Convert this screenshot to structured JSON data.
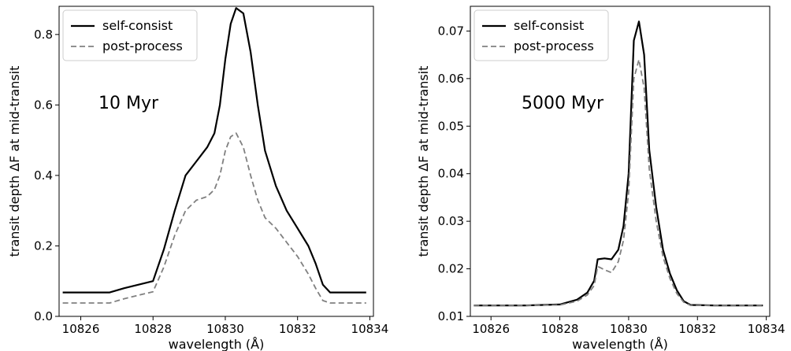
{
  "chart_data": [
    {
      "type": "line",
      "annotation": "10 Myr",
      "xlabel": "wavelength (Å)",
      "ylabel": "transit depth ΔF at mid-transit",
      "xlim": [
        10825.4,
        10834.1
      ],
      "ylim": [
        0.0,
        0.88
      ],
      "xticks": [
        10826,
        10828,
        10830,
        10832,
        10834
      ],
      "xtick_labels": [
        "10826",
        "10828",
        "10830",
        "10832",
        "10834"
      ],
      "yticks": [
        0.0,
        0.2,
        0.4,
        0.6,
        0.8
      ],
      "ytick_labels": [
        "0.0",
        "0.2",
        "0.4",
        "0.6",
        "0.8"
      ],
      "legend_position": "top-left",
      "series": [
        {
          "name": "self-consist",
          "style": "solid",
          "color": "#000000",
          "x": [
            10825.5,
            10826.0,
            10826.8,
            10827.2,
            10827.6,
            10828.0,
            10828.3,
            10828.6,
            10828.9,
            10829.2,
            10829.5,
            10829.7,
            10829.85,
            10830.0,
            10830.15,
            10830.3,
            10830.5,
            10830.7,
            10830.9,
            10831.1,
            10831.4,
            10831.7,
            10832.0,
            10832.3,
            10832.5,
            10832.7,
            10832.9,
            10833.5,
            10833.9
          ],
          "y": [
            0.068,
            0.068,
            0.068,
            0.08,
            0.09,
            0.1,
            0.19,
            0.3,
            0.4,
            0.44,
            0.48,
            0.52,
            0.6,
            0.73,
            0.83,
            0.875,
            0.86,
            0.75,
            0.6,
            0.47,
            0.37,
            0.3,
            0.25,
            0.2,
            0.15,
            0.09,
            0.068,
            0.068,
            0.068
          ]
        },
        {
          "name": "post-process",
          "style": "dashed",
          "color": "#808080",
          "x": [
            10825.5,
            10826.0,
            10826.8,
            10827.2,
            10827.6,
            10828.0,
            10828.3,
            10828.6,
            10828.9,
            10829.2,
            10829.5,
            10829.7,
            10829.85,
            10830.0,
            10830.15,
            10830.3,
            10830.5,
            10830.7,
            10830.9,
            10831.1,
            10831.4,
            10831.7,
            10832.0,
            10832.3,
            10832.5,
            10832.7,
            10832.9,
            10833.5,
            10833.9
          ],
          "y": [
            0.038,
            0.038,
            0.038,
            0.05,
            0.06,
            0.07,
            0.14,
            0.23,
            0.3,
            0.33,
            0.34,
            0.36,
            0.4,
            0.47,
            0.51,
            0.52,
            0.48,
            0.4,
            0.33,
            0.28,
            0.25,
            0.21,
            0.17,
            0.12,
            0.08,
            0.045,
            0.038,
            0.038,
            0.038
          ]
        }
      ]
    },
    {
      "type": "line",
      "annotation": "5000 Myr",
      "xlabel": "wavelength (Å)",
      "ylabel": "transit depth ΔF at mid-transit",
      "xlim": [
        10825.4,
        10834.1
      ],
      "ylim": [
        0.01,
        0.0752
      ],
      "xticks": [
        10826,
        10828,
        10830,
        10832,
        10834
      ],
      "xtick_labels": [
        "10826",
        "10828",
        "10830",
        "10832",
        "10834"
      ],
      "yticks": [
        0.01,
        0.02,
        0.03,
        0.04,
        0.05,
        0.06,
        0.07
      ],
      "ytick_labels": [
        "0.01",
        "0.02",
        "0.03",
        "0.04",
        "0.05",
        "0.06",
        "0.07"
      ],
      "legend_position": "top-left",
      "series": [
        {
          "name": "self-consist",
          "style": "solid",
          "color": "#000000",
          "x": [
            10825.5,
            10827.0,
            10828.0,
            10828.5,
            10828.8,
            10829.0,
            10829.1,
            10829.3,
            10829.5,
            10829.7,
            10829.85,
            10830.0,
            10830.15,
            10830.3,
            10830.45,
            10830.6,
            10830.8,
            10831.0,
            10831.2,
            10831.4,
            10831.6,
            10831.8,
            10832.5,
            10833.9
          ],
          "y": [
            0.0123,
            0.0123,
            0.0125,
            0.0135,
            0.015,
            0.0175,
            0.022,
            0.0222,
            0.022,
            0.024,
            0.029,
            0.04,
            0.068,
            0.072,
            0.065,
            0.045,
            0.033,
            0.024,
            0.019,
            0.0155,
            0.0132,
            0.0124,
            0.0123,
            0.0123
          ]
        },
        {
          "name": "post-process",
          "style": "dashed",
          "color": "#808080",
          "x": [
            10825.5,
            10827.0,
            10828.0,
            10828.5,
            10828.8,
            10829.0,
            10829.1,
            10829.3,
            10829.5,
            10829.7,
            10829.85,
            10830.0,
            10830.15,
            10830.3,
            10830.45,
            10830.6,
            10830.8,
            10831.0,
            10831.2,
            10831.4,
            10831.6,
            10831.8,
            10832.5,
            10833.9
          ],
          "y": [
            0.0123,
            0.0123,
            0.0124,
            0.0132,
            0.0145,
            0.0165,
            0.0205,
            0.0198,
            0.0192,
            0.0215,
            0.026,
            0.036,
            0.06,
            0.064,
            0.058,
            0.041,
            0.03,
            0.0225,
            0.018,
            0.0148,
            0.013,
            0.0123,
            0.0123,
            0.0123
          ]
        }
      ]
    }
  ]
}
